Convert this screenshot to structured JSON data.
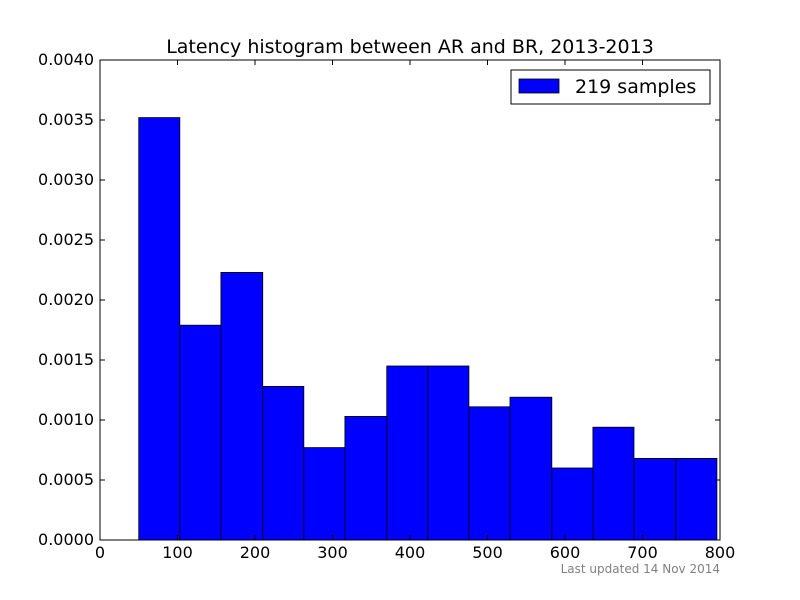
{
  "chart_data": {
    "type": "bar",
    "title": "Latency histogram between AR and BR, 2013-2013",
    "xlabel": "",
    "ylabel": "",
    "xlim": [
      0,
      800
    ],
    "ylim": [
      0,
      0.004
    ],
    "x_ticks": [
      "0",
      "100",
      "200",
      "300",
      "400",
      "500",
      "600",
      "700",
      "800"
    ],
    "y_ticks": [
      "0.0000",
      "0.0005",
      "0.0010",
      "0.0015",
      "0.0020",
      "0.0025",
      "0.0030",
      "0.0035",
      "0.0040"
    ],
    "legend_position": "top-right",
    "grid": false,
    "bar_color": "#0000ff",
    "bins": [
      {
        "x0": 50,
        "x1": 103,
        "value": 0.00352
      },
      {
        "x0": 103,
        "x1": 156,
        "value": 0.00179
      },
      {
        "x0": 156,
        "x1": 210,
        "value": 0.00223
      },
      {
        "x0": 210,
        "x1": 263,
        "value": 0.00128
      },
      {
        "x0": 263,
        "x1": 316,
        "value": 0.00077
      },
      {
        "x0": 316,
        "x1": 370,
        "value": 0.00103
      },
      {
        "x0": 370,
        "x1": 423,
        "value": 0.00145
      },
      {
        "x0": 423,
        "x1": 476,
        "value": 0.00145
      },
      {
        "x0": 476,
        "x1": 529,
        "value": 0.00111
      },
      {
        "x0": 529,
        "x1": 583,
        "value": 0.00119
      },
      {
        "x0": 583,
        "x1": 636,
        "value": 0.0006
      },
      {
        "x0": 636,
        "x1": 689,
        "value": 0.00094
      },
      {
        "x0": 689,
        "x1": 743,
        "value": 0.00068
      },
      {
        "x0": 743,
        "x1": 796,
        "value": 0.00068
      }
    ],
    "series": [
      {
        "name": "219 samples"
      }
    ]
  },
  "footnote": "Last updated 14 Nov 2014"
}
